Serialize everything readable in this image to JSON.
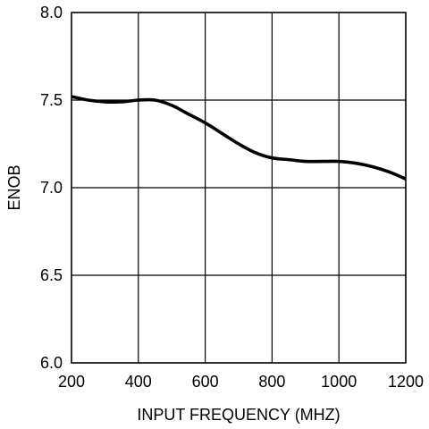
{
  "chart_data": {
    "type": "line",
    "title": "",
    "xlabel": "INPUT FREQUENCY (MHZ)",
    "ylabel": "ENOB",
    "xlim": [
      200,
      1200
    ],
    "ylim": [
      6.0,
      8.0
    ],
    "x_ticks": [
      200,
      400,
      600,
      800,
      1000,
      1200
    ],
    "y_ticks": [
      6.0,
      6.5,
      7.0,
      7.5,
      8.0
    ],
    "x_tick_labels": [
      "200",
      "400",
      "600",
      "800",
      "1000",
      "1200"
    ],
    "y_tick_labels": [
      "6.0",
      "6.5",
      "7.0",
      "7.5",
      "8.0"
    ],
    "grid": true,
    "legend": "none",
    "colors": {
      "line": "#000000",
      "grid": "#000000",
      "background": "#ffffff"
    },
    "series": [
      {
        "x": [
          200,
          250,
          300,
          350,
          400,
          450,
          500,
          550,
          600,
          650,
          700,
          750,
          800,
          850,
          900,
          950,
          1000,
          1050,
          1100,
          1150,
          1200
        ],
        "y": [
          7.52,
          7.5,
          7.49,
          7.49,
          7.5,
          7.5,
          7.47,
          7.42,
          7.37,
          7.31,
          7.25,
          7.2,
          7.17,
          7.16,
          7.15,
          7.15,
          7.15,
          7.14,
          7.12,
          7.09,
          7.05
        ]
      }
    ]
  }
}
